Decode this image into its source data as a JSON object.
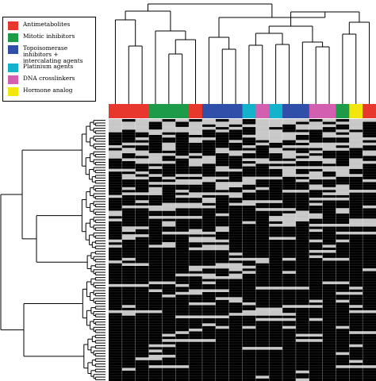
{
  "legend": {
    "items": [
      {
        "label": "Antimetabolites",
        "color": "#e8372c"
      },
      {
        "label": "Mitotic inhibitors",
        "color": "#1e9b48"
      },
      {
        "label": "Topoisomerase inhibitors + intercalating agents",
        "color": "#2f4fa8"
      },
      {
        "label": "Platinium agents",
        "color": "#13b3cc"
      },
      {
        "label": "DNA crosslinkers",
        "color": "#d35fb0"
      },
      {
        "label": "Hormone analog",
        "color": "#f2e60d"
      }
    ]
  },
  "chart_data": {
    "type": "heatmap",
    "colors": {
      "present": "#000000",
      "absent": "#c8c8c8"
    },
    "column_classes": [
      "Antimetabolites",
      "Antimetabolites",
      "Antimetabolites",
      "Mitotic inhibitors",
      "Mitotic inhibitors",
      "Mitotic inhibitors",
      "Antimetabolites",
      "Topoisomerase inhibitors + intercalating agents",
      "Topoisomerase inhibitors + intercalating agents",
      "Topoisomerase inhibitors + intercalating agents",
      "Platinium agents",
      "DNA crosslinkers",
      "Platinium agents",
      "Topoisomerase inhibitors + intercalating agents",
      "Topoisomerase inhibitors + intercalating agents",
      "DNA crosslinkers",
      "DNA crosslinkers",
      "Mitotic inhibitors",
      "Hormone analog",
      "Antimetabolites"
    ]
  }
}
